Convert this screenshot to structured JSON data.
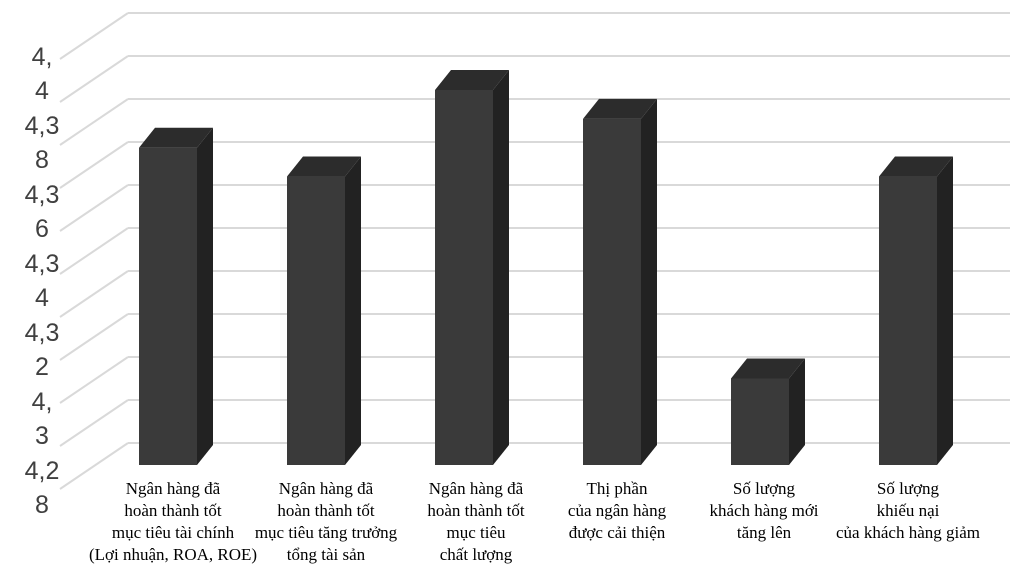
{
  "chart_data": {
    "type": "bar",
    "style": "3d-column",
    "grid": true,
    "legend": "none",
    "ylim": [
      4.28,
      4.45
    ],
    "y_tick_labels": [
      [
        "4,",
        "4"
      ],
      [
        "4,3",
        "8"
      ],
      [
        "4,3",
        "6"
      ],
      [
        "4,3",
        "4"
      ],
      [
        "4,3",
        "2"
      ],
      [
        "4,",
        "3"
      ],
      [
        "4,2",
        "8"
      ]
    ],
    "categories": [
      [
        "Ngân hàng đã",
        "hoàn thành tốt",
        "mục tiêu tài chính",
        "(Lợi nhuận, ROA, ROE)"
      ],
      [
        "Ngân hàng đã",
        "hoàn thành tốt",
        "mục tiêu tăng trưởng",
        "tổng tài sản"
      ],
      [
        "Ngân hàng đã",
        "hoàn thành tốt",
        "mục tiêu",
        "chất lượng"
      ],
      [
        "Thị phần",
        "của ngân hàng",
        "được cải thiện"
      ],
      [
        "Số lượng",
        "khách hàng mới",
        "tăng lên"
      ],
      [
        "Số lượng",
        "khiếu nại",
        "của khách hàng giảm"
      ]
    ],
    "values": [
      4.39,
      4.38,
      4.41,
      4.4,
      4.31,
      4.38
    ],
    "colors": {
      "bar_front": "#3a3a3a",
      "bar_side": "#222222",
      "bar_top": "#2c2c2c",
      "grid": "#d9d9d9"
    }
  }
}
